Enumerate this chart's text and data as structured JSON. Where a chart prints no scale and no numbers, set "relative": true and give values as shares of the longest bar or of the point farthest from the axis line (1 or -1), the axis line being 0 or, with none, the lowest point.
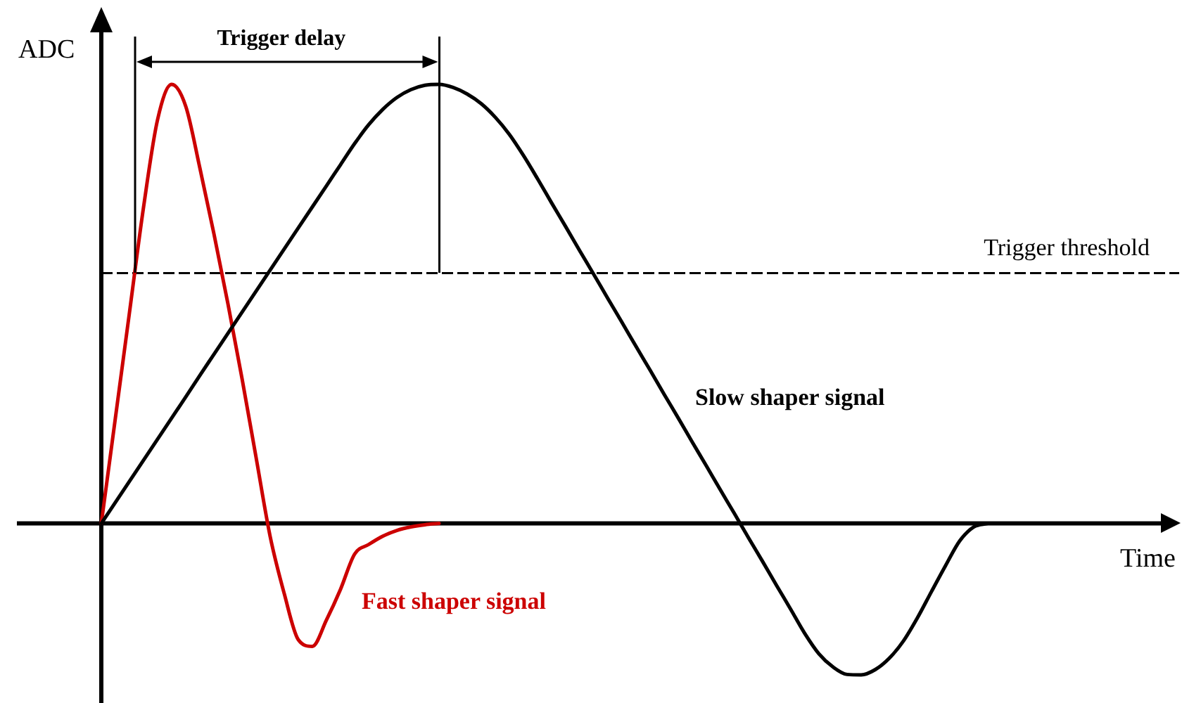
{
  "chart_data": {
    "type": "line",
    "xlabel": "Time",
    "ylabel": "ADC",
    "annotations": [
      "Trigger delay"
    ],
    "categories": [
      null,
      null,
      null,
      null,
      null,
      null,
      null,
      null,
      null,
      null,
      null,
      null,
      null,
      null,
      null,
      null,
      null,
      null,
      null,
      null,
      null,
      null,
      null,
      null,
      null,
      null,
      null,
      null,
      null,
      null,
      null,
      null,
      null,
      null,
      null,
      null,
      null,
      null,
      null,
      null,
      null,
      null,
      null,
      null,
      null,
      null,
      null,
      null,
      null,
      null,
      null,
      null,
      null,
      null,
      null,
      null,
      null,
      null,
      null,
      null,
      null,
      null,
      null,
      null
    ],
    "relative": true,
    "series": [
      {
        "name": "Slow shaper signal",
        "color": "#000000",
        "values": [
          0,
          0.048,
          0.096,
          0.144,
          0.192,
          0.24,
          0.288,
          0.337,
          0.385,
          0.433,
          0.481,
          0.529,
          0.577,
          0.625,
          0.673,
          0.721,
          0.769,
          0.817,
          0.865,
          0.908,
          0.943,
          0.97,
          0.988,
          0.998,
          1,
          0.993,
          0.978,
          0.956,
          0.925,
          0.886,
          0.838,
          0.785,
          0.73,
          0.676,
          0.621,
          0.567,
          0.512,
          0.458,
          0.403,
          0.349,
          0.294,
          0.24,
          0.185,
          0.131,
          0.076,
          0.022,
          -0.033,
          -0.087,
          -0.142,
          -0.196,
          -0.251,
          -0.297,
          -0.327,
          -0.344,
          -0.345,
          -0.333,
          -0.307,
          -0.268,
          -0.215,
          -0.155,
          -0.096,
          -0.04,
          -0.008,
          0
        ]
      },
      {
        "name": "Fast shaper signal",
        "color": "#cc0000",
        "values": [
          0,
          0.24,
          0.48,
          0.72,
          0.92,
          1,
          0.95,
          0.81,
          0.66,
          0.5,
          0.33,
          0.15,
          -0.03,
          -0.16,
          -0.265,
          -0.28,
          -0.22,
          -0.15,
          -0.07,
          -0.048,
          -0.029,
          -0.016,
          -0.008,
          -0.003,
          0,
          null,
          null,
          null,
          null,
          null,
          null,
          null,
          null,
          null,
          null,
          null,
          null,
          null,
          null,
          null,
          null,
          null,
          null,
          null,
          null,
          null,
          null,
          null,
          null,
          null,
          null,
          null,
          null,
          null,
          null,
          null,
          null,
          null,
          null,
          null,
          null,
          null,
          null,
          null
        ]
      }
    ],
    "ref_lines": [
      {
        "axis": "y",
        "value": 0.57,
        "label": "Trigger threshold",
        "color": "#000000",
        "line_style": "dashed"
      }
    ],
    "tick_labels": false,
    "legend": false,
    "marker": "none",
    "line_style": "solid"
  }
}
